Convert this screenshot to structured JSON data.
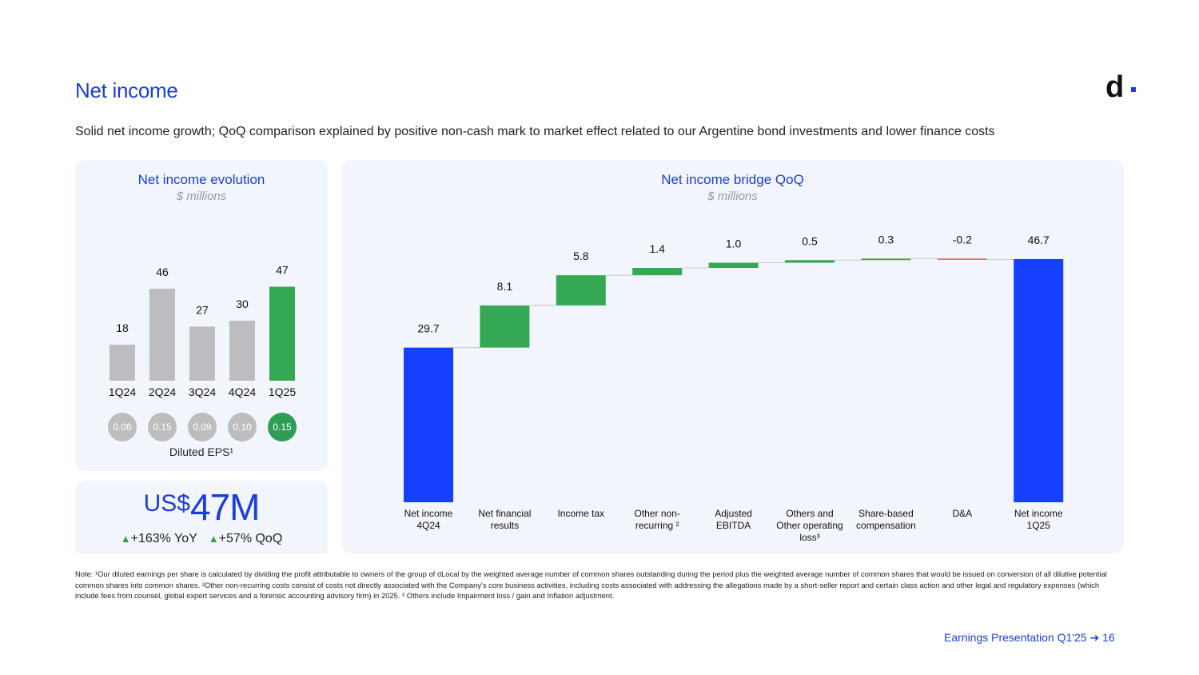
{
  "header": {
    "title": "Net income",
    "subtitle": "Solid net income growth; QoQ comparison explained by positive non-cash mark to market effect related to our Argentine bond investments and lower finance costs"
  },
  "colors": {
    "brand_blue": "#1a3fd6",
    "bar_blue": "#1540ff",
    "green": "#34a853",
    "eps_green": "#2e9d56",
    "gray": "#bdbdc1",
    "eps_gray": "#bdbdbd",
    "red": "#e0534a"
  },
  "evolution": {
    "title": "Net income evolution",
    "unit": "$ millions",
    "eps_label": "Diluted EPS¹",
    "eps": [
      "0.06",
      "0.15",
      "0.09",
      "0.10",
      "0.15"
    ]
  },
  "kpi": {
    "currency": "US$",
    "value": "47M",
    "yoy": "+163% YoY",
    "qoq": "+57% QoQ"
  },
  "bridge": {
    "title": "Net income bridge QoQ",
    "unit": "$ millions"
  },
  "chart_data": [
    {
      "type": "bar",
      "title": "Net income evolution",
      "subtitle": "$ millions",
      "categories": [
        "1Q24",
        "2Q24",
        "3Q24",
        "4Q24",
        "1Q25"
      ],
      "values": [
        18,
        46,
        27,
        30,
        47
      ],
      "labels": [
        "18",
        "46",
        "27",
        "30",
        "47"
      ],
      "highlight": "1Q25",
      "ylim": [
        0,
        50
      ]
    },
    {
      "type": "waterfall",
      "title": "Net income bridge QoQ",
      "subtitle": "$ millions",
      "categories": [
        "Net income 4Q24",
        "Net financial results",
        "Income tax",
        "Other non-recurring ²",
        "Adjusted EBITDA",
        "Others and Other operating loss³",
        "Share-based compensation",
        "D&A",
        "Net income 1Q25"
      ],
      "category_lines": [
        [
          "Net income",
          "4Q24"
        ],
        [
          "Net financial",
          "results"
        ],
        [
          "Income tax"
        ],
        [
          "Other non-",
          "recurring ²"
        ],
        [
          "Adjusted",
          "EBITDA"
        ],
        [
          "Others and",
          "Other operating",
          "loss³"
        ],
        [
          "Share-based",
          "compensation"
        ],
        [
          "D&A"
        ],
        [
          "Net income",
          "1Q25"
        ]
      ],
      "values": [
        29.7,
        8.1,
        5.8,
        1.4,
        1.0,
        0.5,
        0.3,
        -0.2,
        46.7
      ],
      "labels": [
        "29.7",
        "8.1",
        "5.8",
        "1.4",
        "1.0",
        "0.5",
        "0.3",
        "-0.2",
        "46.7"
      ],
      "kinds": [
        "total",
        "delta",
        "delta",
        "delta",
        "delta",
        "delta",
        "delta",
        "delta",
        "total"
      ],
      "ylim": [
        0,
        47
      ]
    }
  ],
  "note": "Note: ¹Our diluted earnings per share is calculated by dividing the profit attributable to owners of the group of dLocal by the weighted average number of common shares outstanding during the period plus the weighted average number of common shares that would be issued on conversion of all dilutive potential common shares into common shares. ²Other non-recurring costs consist of costs not directly associated with the Company's core business activities, including costs associated with addressing the allegations made by a short-seller report and certain class action and other legal and regulatory expenses (which include fees from counsel, global expert services and a forensic accounting advisory firm) in 2025. ³ Others include Impairment loss / gain and Inflation adjustment.",
  "footer": {
    "text": "Earnings Presentation Q1'25 ➔ 16"
  },
  "logo": {
    "text": "d"
  }
}
